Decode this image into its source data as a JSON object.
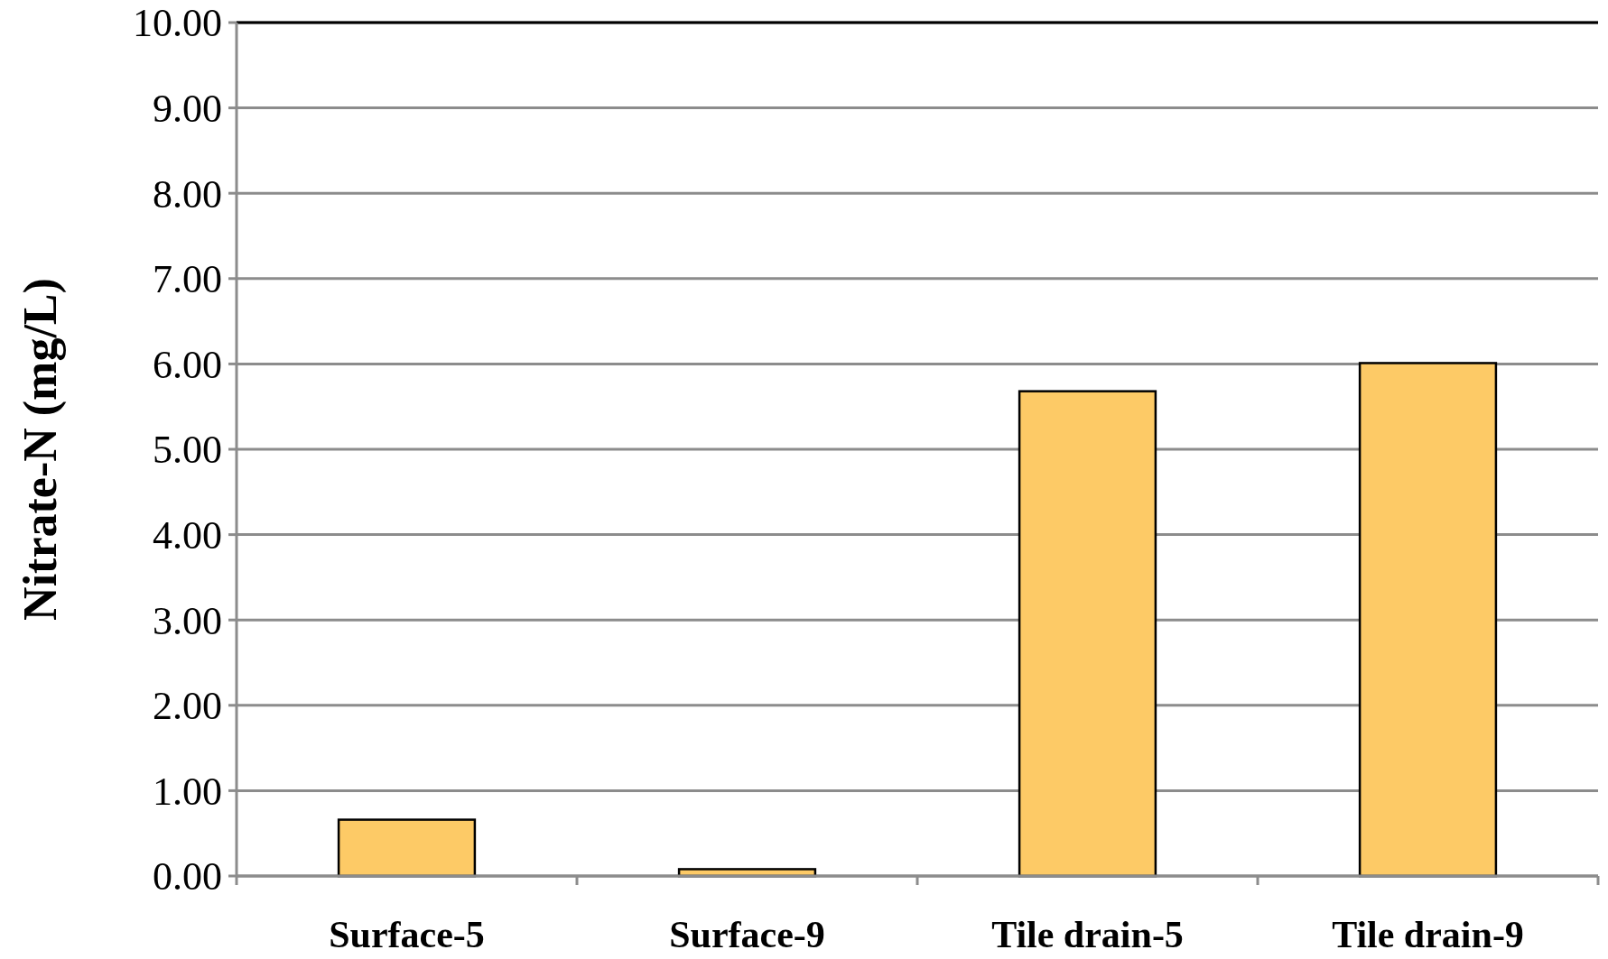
{
  "chart_data": {
    "type": "bar",
    "ylabel": "Nitrate-N (mg/L)",
    "categories": [
      "Surface-5",
      "Surface-9",
      "Tile drain-5",
      "Tile drain-9"
    ],
    "values": [
      0.66,
      0.08,
      5.68,
      6.01
    ],
    "color": "#fdca66",
    "ylim": [
      0,
      10
    ],
    "yticks": [
      {
        "value": 0,
        "label": "0.00"
      },
      {
        "value": 1,
        "label": "1.00"
      },
      {
        "value": 2,
        "label": "2.00"
      },
      {
        "value": 3,
        "label": "3.00"
      },
      {
        "value": 4,
        "label": "4.00"
      },
      {
        "value": 5,
        "label": "5.00"
      },
      {
        "value": 6,
        "label": "6.00"
      },
      {
        "value": 7,
        "label": "7.00"
      },
      {
        "value": 8,
        "label": "8.00"
      },
      {
        "value": 9,
        "label": "9.00"
      },
      {
        "value": 10,
        "label": "10.00"
      }
    ],
    "grid": "y"
  }
}
